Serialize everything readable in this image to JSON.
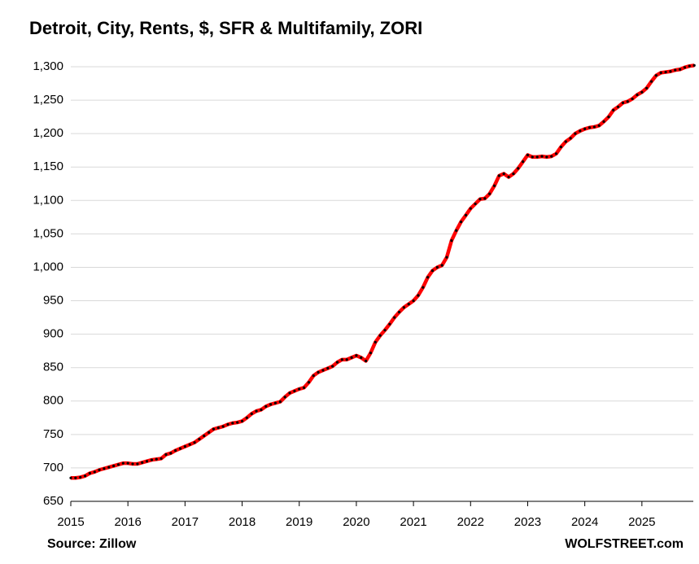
{
  "chart_data": {
    "type": "line",
    "title": "Detroit, City, Rents, $, SFR & Multifamily, ZORI",
    "source": "Source: Zillow",
    "credit": "WOLFSTREET.com",
    "x": [
      2015,
      2015.083,
      2015.167,
      2015.25,
      2015.333,
      2015.417,
      2015.5,
      2015.583,
      2015.667,
      2015.75,
      2015.833,
      2015.917,
      2016,
      2016.083,
      2016.167,
      2016.25,
      2016.333,
      2016.417,
      2016.5,
      2016.583,
      2016.667,
      2016.75,
      2016.833,
      2016.917,
      2017,
      2017.083,
      2017.167,
      2017.25,
      2017.333,
      2017.417,
      2017.5,
      2017.583,
      2017.667,
      2017.75,
      2017.833,
      2017.917,
      2018,
      2018.083,
      2018.167,
      2018.25,
      2018.333,
      2018.417,
      2018.5,
      2018.583,
      2018.667,
      2018.75,
      2018.833,
      2018.917,
      2019,
      2019.083,
      2019.167,
      2019.25,
      2019.333,
      2019.417,
      2019.5,
      2019.583,
      2019.667,
      2019.75,
      2019.833,
      2019.917,
      2020,
      2020.083,
      2020.167,
      2020.25,
      2020.333,
      2020.417,
      2020.5,
      2020.583,
      2020.667,
      2020.75,
      2020.833,
      2020.917,
      2021,
      2021.083,
      2021.167,
      2021.25,
      2021.333,
      2021.417,
      2021.5,
      2021.583,
      2021.667,
      2021.75,
      2021.833,
      2021.917,
      2022,
      2022.083,
      2022.167,
      2022.25,
      2022.333,
      2022.417,
      2022.5,
      2022.583,
      2022.667,
      2022.75,
      2022.833,
      2022.917,
      2023,
      2023.083,
      2023.167,
      2023.25,
      2023.333,
      2023.417,
      2023.5,
      2023.583,
      2023.667,
      2023.75,
      2023.833,
      2023.917,
      2024,
      2024.083,
      2024.167,
      2024.25,
      2024.333,
      2024.417,
      2024.5,
      2024.583,
      2024.667,
      2024.75,
      2024.833,
      2024.917,
      2025,
      2025.083,
      2025.167,
      2025.25,
      2025.333,
      2025.417,
      2025.5,
      2025.583,
      2025.667,
      2025.75,
      2025.833,
      2025.917
    ],
    "series": [
      {
        "color": "#ff0000",
        "marker_color": "#000000",
        "values": [
          685,
          685,
          686,
          688,
          692,
          694,
          697,
          699,
          701,
          703,
          705,
          707,
          707,
          706,
          706,
          708,
          710,
          712,
          713,
          714,
          720,
          722,
          726,
          729,
          732,
          735,
          738,
          743,
          748,
          753,
          758,
          760,
          762,
          765,
          767,
          768,
          770,
          775,
          781,
          785,
          787,
          792,
          795,
          797,
          799,
          806,
          812,
          815,
          818,
          820,
          828,
          838,
          843,
          846,
          849,
          852,
          858,
          862,
          862,
          865,
          868,
          865,
          860,
          872,
          888,
          898,
          906,
          915,
          925,
          933,
          940,
          945,
          950,
          958,
          970,
          985,
          995,
          1000,
          1003,
          1015,
          1040,
          1055,
          1068,
          1078,
          1088,
          1095,
          1102,
          1103,
          1110,
          1122,
          1137,
          1140,
          1135,
          1140,
          1148,
          1158,
          1168,
          1165,
          1165,
          1166,
          1165,
          1166,
          1170,
          1180,
          1188,
          1193,
          1200,
          1204,
          1207,
          1209,
          1210,
          1212,
          1218,
          1225,
          1235,
          1240,
          1246,
          1248,
          1252,
          1258,
          1262,
          1268,
          1278,
          1287,
          1291,
          1292,
          1293,
          1295,
          1296,
          1299,
          1301,
          1302
        ]
      }
    ],
    "xlim": [
      2015,
      2025.9
    ],
    "xticks": [
      2015,
      2016,
      2017,
      2018,
      2019,
      2020,
      2021,
      2022,
      2023,
      2024,
      2025
    ],
    "ylim": [
      650,
      1300
    ],
    "yticks": [
      650,
      700,
      750,
      800,
      850,
      900,
      950,
      {
        "value": 1000,
        "label": "1,000"
      },
      {
        "value": 1050,
        "label": "1,050"
      },
      {
        "value": 1100,
        "label": "1,100"
      },
      {
        "value": 1150,
        "label": "1,150"
      },
      {
        "value": 1200,
        "label": "1,200"
      },
      {
        "value": 1250,
        "label": "1,250"
      },
      {
        "value": 1300,
        "label": "1,300"
      }
    ],
    "grid": true
  }
}
